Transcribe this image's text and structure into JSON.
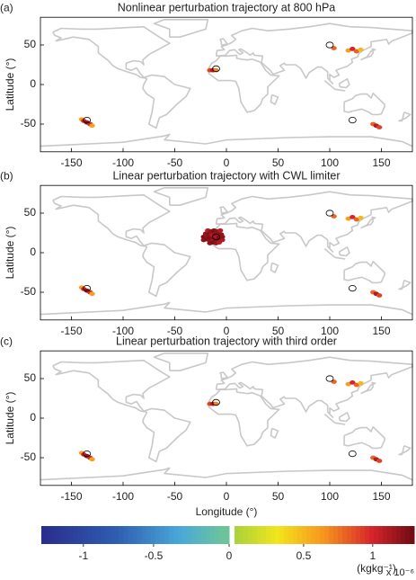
{
  "chart_data": [
    {
      "type": "scatter",
      "label": "(a)",
      "title": "Nonlinear perturbation trajectory at 800 hPa",
      "ylabel": "Latitude (°)",
      "xlim": [
        -180,
        180
      ],
      "ylim": [
        -85,
        85
      ],
      "xticks": [
        -150,
        -100,
        -50,
        0,
        50,
        100,
        150
      ],
      "yticks": [
        -50,
        0,
        50
      ],
      "x": [
        -140,
        -138,
        -135,
        -132,
        -130,
        -16,
        -13,
        -10,
        104,
        118,
        122,
        126,
        130,
        142,
        145,
        148
      ],
      "y": [
        -44,
        -46,
        -48,
        -50,
        -52,
        18,
        18,
        18,
        46,
        43,
        45,
        42,
        44,
        -50,
        -52,
        -54
      ],
      "values": [
        0.6,
        1.0,
        1.2,
        1.0,
        0.6,
        0.9,
        1.1,
        0.7,
        0.8,
        0.6,
        1.0,
        0.8,
        0.5,
        0.8,
        1.1,
        0.9
      ],
      "ring_x": [
        -135,
        -10,
        100,
        122
      ],
      "ring_y": [
        -45,
        20,
        50,
        -45
      ]
    },
    {
      "type": "scatter",
      "label": "(b)",
      "title": "Linear perturbation trajectory with CWL limiter",
      "ylabel": "Latitude (°)",
      "xlim": [
        -180,
        180
      ],
      "ylim": [
        -85,
        85
      ],
      "xticks": [
        -150,
        -100,
        -50,
        0,
        50,
        100,
        150
      ],
      "yticks": [
        -50,
        0,
        50
      ],
      "x": [
        -140,
        -138,
        -135,
        -132,
        -130,
        104,
        118,
        122,
        126,
        130,
        142,
        145,
        148,
        -22,
        -19,
        -16,
        -13,
        -10,
        -7,
        -4,
        -22,
        -19,
        -16,
        -13,
        -10,
        -7,
        -4,
        -20,
        -17,
        -14,
        -11,
        -8,
        -5,
        -18,
        -15,
        -12,
        -9,
        -6,
        -16,
        -13,
        -10,
        -7
      ],
      "y": [
        -44,
        -46,
        -48,
        -50,
        -52,
        46,
        43,
        45,
        42,
        44,
        -50,
        -52,
        -54,
        16,
        17,
        15,
        16,
        17,
        15,
        16,
        20,
        21,
        19,
        20,
        21,
        19,
        20,
        24,
        25,
        23,
        24,
        25,
        23,
        28,
        27,
        28,
        27,
        28,
        12,
        13,
        12,
        13
      ],
      "values": [
        0.6,
        1.0,
        1.2,
        1.0,
        0.6,
        0.8,
        0.6,
        1.0,
        0.8,
        0.5,
        0.8,
        1.1,
        0.9,
        1.2,
        1.25,
        1.2,
        1.1,
        1.2,
        1.25,
        1.1,
        1.25,
        1.2,
        1.25,
        1.2,
        1.1,
        1.25,
        1.2,
        1.2,
        1.25,
        1.1,
        1.2,
        1.25,
        1.2,
        1.1,
        1.2,
        1.25,
        1.2,
        1.1,
        1.2,
        1.25,
        1.2,
        1.1
      ],
      "ring_x": [
        -135,
        -10,
        100,
        122
      ],
      "ring_y": [
        -45,
        20,
        50,
        -45
      ]
    },
    {
      "type": "scatter",
      "label": "(c)",
      "title": "Linear perturbation trajectory with third order",
      "ylabel": "Latitude (°)",
      "xlabel": "Longitude (°)",
      "xlim": [
        -180,
        180
      ],
      "ylim": [
        -85,
        85
      ],
      "xticks": [
        -150,
        -100,
        -50,
        0,
        50,
        100,
        150
      ],
      "yticks": [
        -50,
        0,
        50
      ],
      "x": [
        -140,
        -138,
        -135,
        -132,
        -130,
        -16,
        -13,
        -10,
        104,
        118,
        122,
        126,
        130,
        142,
        145,
        148
      ],
      "y": [
        -44,
        -46,
        -48,
        -50,
        -52,
        18,
        18,
        18,
        46,
        43,
        45,
        42,
        44,
        -50,
        -52,
        -54
      ],
      "values": [
        0.6,
        1.0,
        1.2,
        1.0,
        0.6,
        0.9,
        1.1,
        0.7,
        0.8,
        0.6,
        1.0,
        0.8,
        0.5,
        0.8,
        1.1,
        0.9
      ],
      "ring_x": [
        -135,
        -10,
        100,
        122
      ],
      "ring_y": [
        -45,
        20,
        50,
        -45
      ]
    },
    {
      "type": "colorbar",
      "clim": [
        -1.3,
        1.3
      ],
      "ticks": [
        -1,
        -0.5,
        0,
        0.5,
        1
      ],
      "label": "(kgkg⁻¹)",
      "scale_label": "x 10⁻⁶"
    }
  ]
}
